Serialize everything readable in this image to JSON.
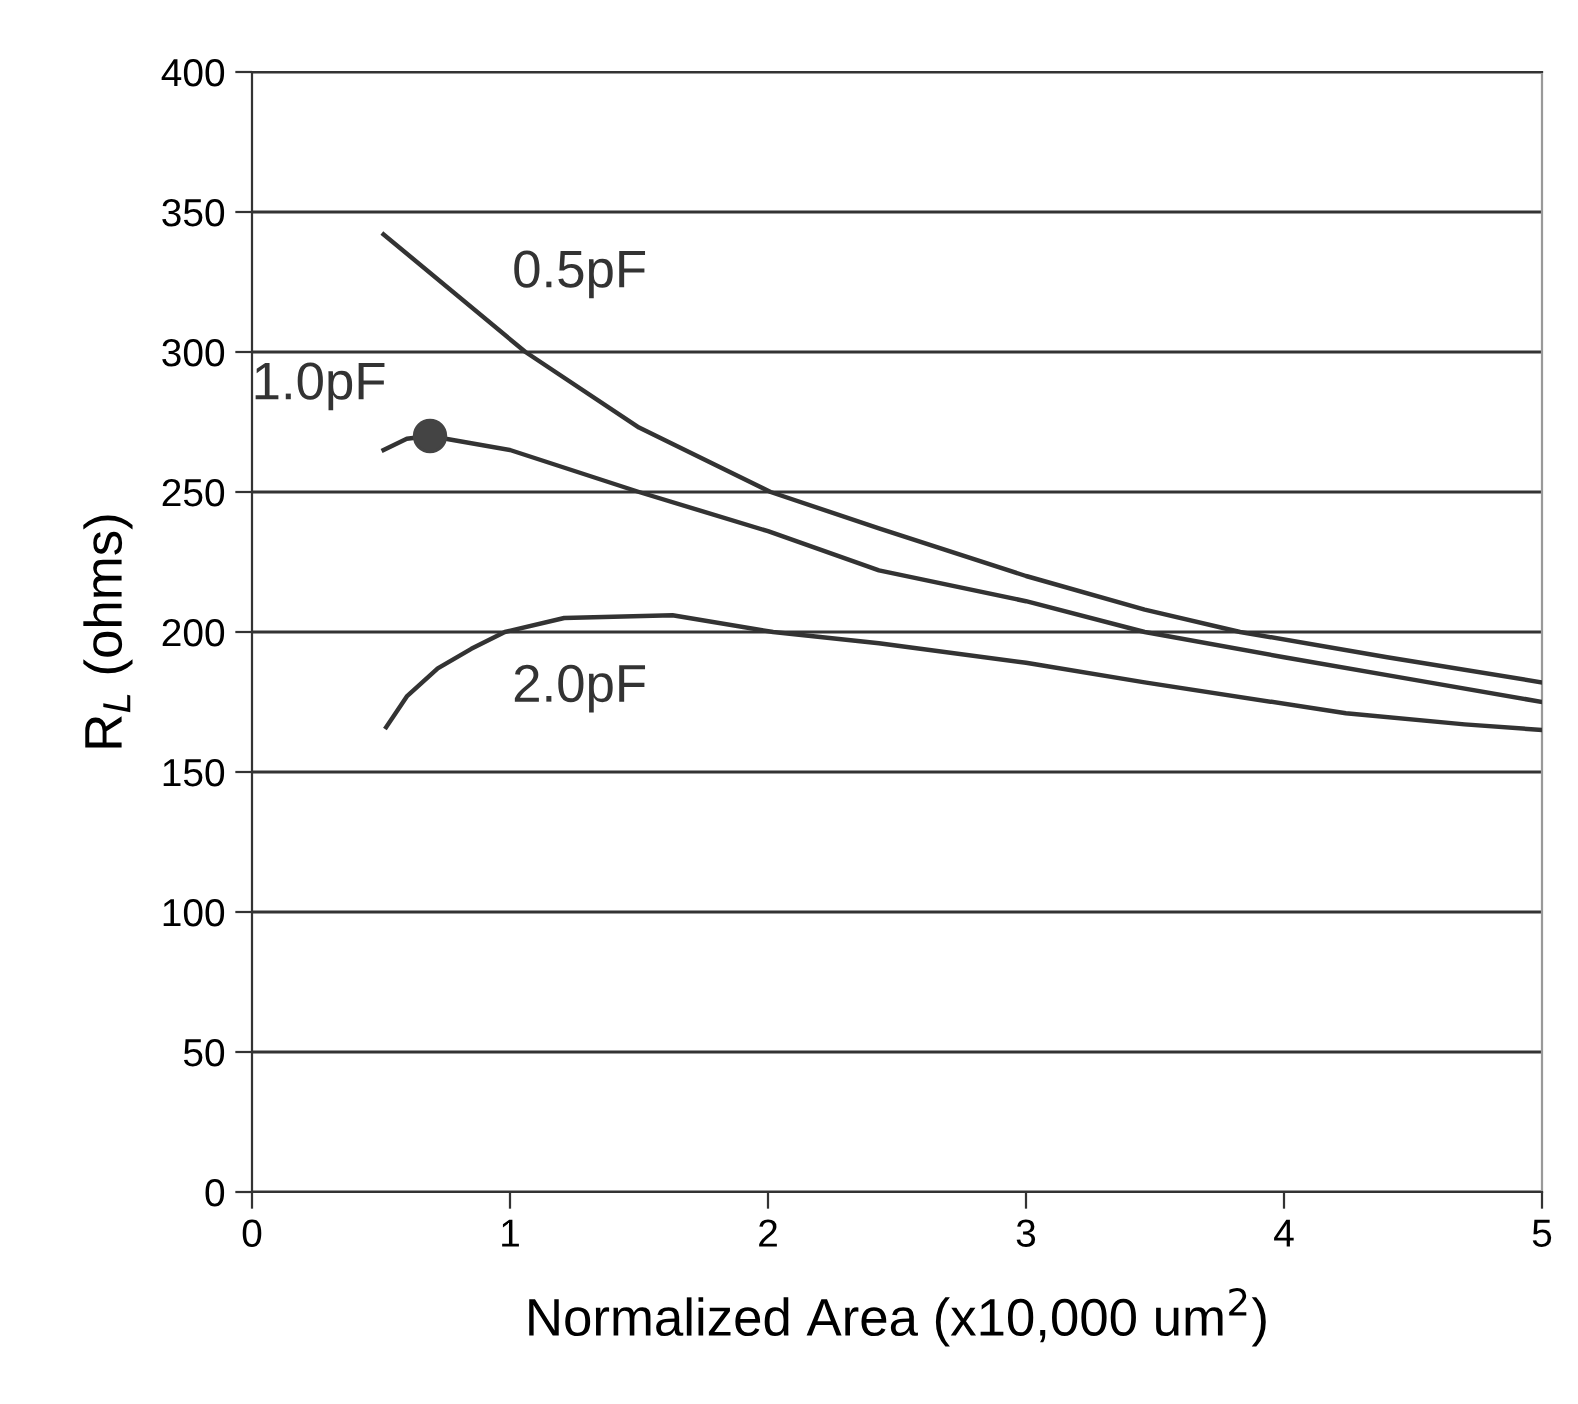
{
  "chart_data": {
    "type": "line",
    "xlabel": "Normalized Area (x10,000 um$^{2}$)",
    "ylabel": "R$_{L}$ (ohms)",
    "xlim": [
      0,
      5
    ],
    "xticks": [
      0,
      1,
      2,
      3,
      4,
      5
    ],
    "ylim": [
      0,
      400
    ],
    "yticks": [
      0,
      50,
      100,
      150,
      200,
      250,
      300,
      350,
      400
    ],
    "grid": "y",
    "legend": false,
    "series": [
      {
        "name": "0.5pF",
        "color": "#333333",
        "x": [
          0.51,
          1.06,
          1.5,
          2.01,
          2.43,
          3.0,
          3.46,
          3.83,
          4.4,
          5.0
        ],
        "values": [
          342,
          300,
          273,
          250,
          237,
          220,
          208,
          200,
          191,
          182
        ]
      },
      {
        "name": "1.0pF",
        "color": "#333333",
        "x": [
          0.51,
          0.6,
          0.69,
          1.0,
          1.5,
          2.0,
          2.43,
          3.0,
          3.46,
          4.0,
          4.5,
          5.0
        ],
        "values": [
          265,
          269,
          270,
          265,
          250,
          236,
          222,
          211,
          200,
          191,
          183,
          175
        ]
      },
      {
        "name": "2.0pF",
        "color": "#333333",
        "x": [
          0.52,
          0.6,
          0.72,
          0.85,
          0.98,
          1.21,
          1.63,
          2.02,
          2.43,
          3.0,
          3.46,
          4.24,
          4.7,
          5.0
        ],
        "values": [
          166,
          177,
          187,
          194,
          200,
          205,
          206,
          200,
          196,
          189,
          182,
          171,
          167,
          165
        ]
      },
      {
        "type": "scatter",
        "color": "#444444",
        "marker": "circle",
        "x": [
          0.69
        ],
        "values": [
          270
        ]
      }
    ]
  }
}
